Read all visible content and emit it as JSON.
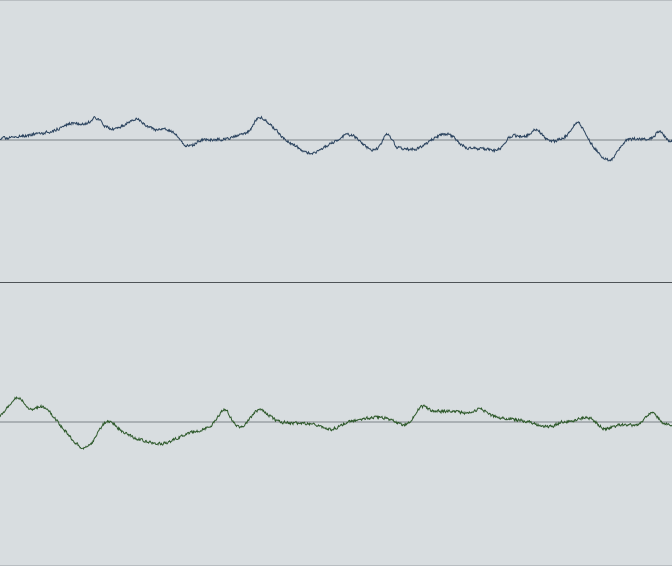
{
  "tracks": [
    {
      "id": "track-1",
      "waveform_color": "#2d4560",
      "baseline_color": "#7d8287",
      "seed": 11
    },
    {
      "id": "track-2",
      "waveform_color": "#2f5a2c",
      "baseline_color": "#7d8287",
      "seed": 29
    }
  ]
}
